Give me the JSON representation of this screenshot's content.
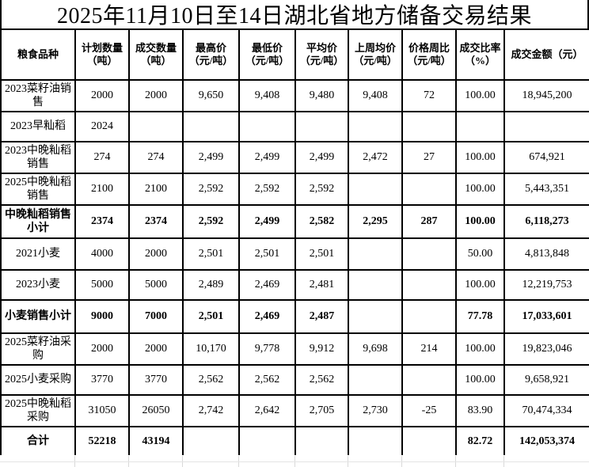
{
  "title": "2025年11月10日至14日湖北省地方储备交易结果",
  "table": {
    "headers": [
      "粮食品种",
      "计划数量\n（吨）",
      "成交数量\n（吨）",
      "最高价\n（元/吨）",
      "最低价\n（元/吨）",
      "平均价\n（元/吨）",
      "上周均价\n（元/吨）",
      "价格周比\n（元/吨）",
      "成交比率\n（%）",
      "成交金额（元）"
    ],
    "rows": [
      [
        "2023菜籽油销售",
        "2000",
        "2000",
        "9,650",
        "9,408",
        "9,480",
        "9,408",
        "72",
        "100.00",
        "18,945,200"
      ],
      [
        "2023早籼稻",
        "2024",
        "",
        "",
        "",
        "",
        "",
        "",
        "",
        ""
      ],
      [
        "2023中晚籼稻销售",
        "274",
        "274",
        "2,499",
        "2,499",
        "2,499",
        "2,472",
        "27",
        "100.00",
        "674,921"
      ],
      [
        "2025中晚籼稻销售",
        "2100",
        "2100",
        "2,592",
        "2,592",
        "2,592",
        "",
        "",
        "100.00",
        "5,443,351"
      ],
      [
        "中晚籼稻销售小计",
        "2374",
        "2374",
        "2,592",
        "2,499",
        "2,582",
        "2,295",
        "287",
        "100.00",
        "6,118,273"
      ],
      [
        "2021小麦",
        "4000",
        "2000",
        "2,501",
        "2,501",
        "2,501",
        "",
        "",
        "50.00",
        "4,813,848"
      ],
      [
        "2023小麦",
        "5000",
        "5000",
        "2,489",
        "2,469",
        "2,481",
        "",
        "",
        "100.00",
        "12,219,753"
      ],
      [
        "小麦销售小计",
        "9000",
        "7000",
        "2,501",
        "2,469",
        "2,487",
        "",
        "",
        "77.78",
        "17,033,601"
      ],
      [
        "2025菜籽油采购",
        "2000",
        "2000",
        "10,170",
        "9,778",
        "9,912",
        "9,698",
        "214",
        "100.00",
        "19,823,046"
      ],
      [
        "2025小麦采购",
        "3770",
        "3770",
        "2,562",
        "2,562",
        "2,562",
        "",
        "",
        "100.00",
        "9,658,921"
      ],
      [
        "2025中晚籼稻采购",
        "31050",
        "26050",
        "2,742",
        "2,642",
        "2,705",
        "2,730",
        "-25",
        "83.90",
        "70,474,334"
      ],
      [
        "合计",
        "52218",
        "43194",
        "",
        "",
        "",
        "",
        "",
        "82.72",
        "142,053,374"
      ]
    ],
    "emphasis_rows": [
      4,
      7,
      11
    ]
  },
  "chart_data": {
    "type": "table",
    "title": "2025年11月10日至14日湖北省地方储备交易结果",
    "columns": [
      "粮食品种",
      "计划数量（吨）",
      "成交数量（吨）",
      "最高价（元/吨）",
      "最低价（元/吨）",
      "平均价（元/吨）",
      "上周均价（元/吨）",
      "价格周比（元/吨）",
      "成交比率（%）",
      "成交金额（元）"
    ],
    "rows": [
      [
        "2023菜籽油销售",
        "2000",
        "2000",
        "9,650",
        "9,408",
        "9,480",
        "9,408",
        "72",
        "100.00",
        "18,945,200"
      ],
      [
        "2023早籼稻",
        "2024",
        "",
        "",
        "",
        "",
        "",
        "",
        "",
        ""
      ],
      [
        "2023中晚籼稻销售",
        "274",
        "274",
        "2,499",
        "2,499",
        "2,499",
        "2,472",
        "27",
        "100.00",
        "674,921"
      ],
      [
        "2025中晚籼稻销售",
        "2100",
        "2100",
        "2,592",
        "2,592",
        "2,592",
        "",
        "",
        "100.00",
        "5,443,351"
      ],
      [
        "中晚籼稻销售小计",
        "2374",
        "2374",
        "2,592",
        "2,499",
        "2,582",
        "2,295",
        "287",
        "100.00",
        "6,118,273"
      ],
      [
        "2021小麦",
        "4000",
        "2000",
        "2,501",
        "2,501",
        "2,501",
        "",
        "",
        "50.00",
        "4,813,848"
      ],
      [
        "2023小麦",
        "5000",
        "5000",
        "2,489",
        "2,469",
        "2,481",
        "",
        "",
        "100.00",
        "12,219,753"
      ],
      [
        "小麦销售小计",
        "9000",
        "7000",
        "2,501",
        "2,469",
        "2,487",
        "",
        "",
        "77.78",
        "17,033,601"
      ],
      [
        "2025菜籽油采购",
        "2000",
        "2000",
        "10,170",
        "9,778",
        "9,912",
        "9,698",
        "214",
        "100.00",
        "19,823,046"
      ],
      [
        "2025小麦采购",
        "3770",
        "3770",
        "2,562",
        "2,562",
        "2,562",
        "",
        "",
        "100.00",
        "9,658,921"
      ],
      [
        "2025中晚籼稻采购",
        "31050",
        "26050",
        "2,742",
        "2,642",
        "2,705",
        "2,730",
        "-25",
        "83.90",
        "70,474,334"
      ],
      [
        "合计",
        "52218",
        "43194",
        "",
        "",
        "",
        "",
        "",
        "82.72",
        "142,053,374"
      ]
    ]
  }
}
